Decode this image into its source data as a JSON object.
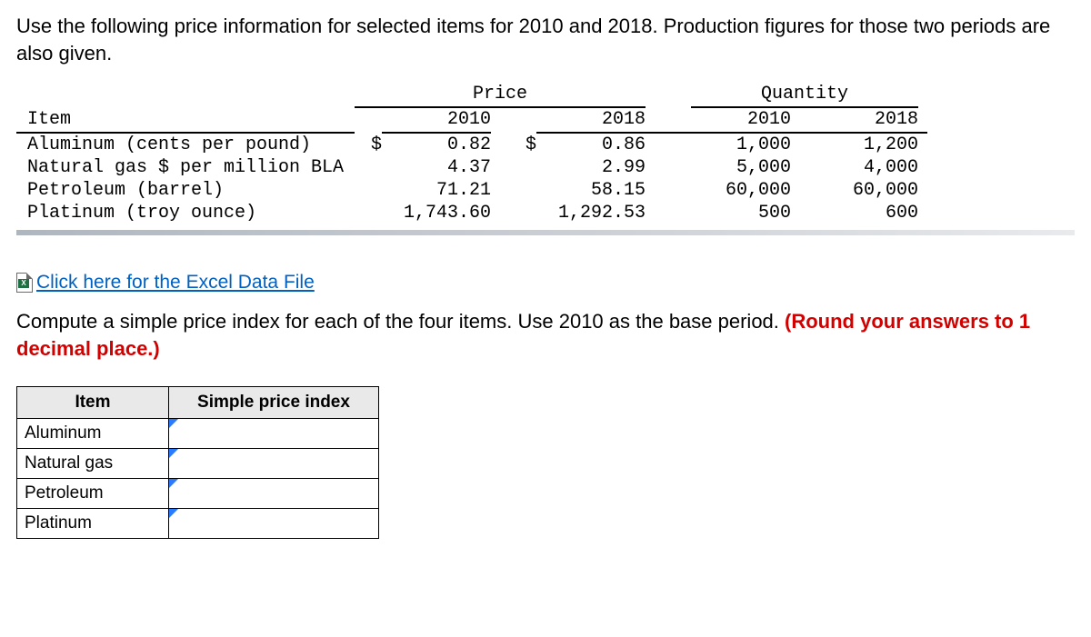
{
  "prompt": "Use the following price information for selected items for 2010 and 2018. Production figures for those two periods are also given.",
  "data_table": {
    "group_headers": {
      "price": "Price",
      "quantity": "Quantity"
    },
    "col_headers": {
      "item": "Item",
      "p2010": "2010",
      "p2018": "2018",
      "q2010": "2010",
      "q2018": "2018"
    },
    "currency_symbol": "$",
    "rows": [
      {
        "item": "Aluminum (cents per pound)",
        "dollar1": "$",
        "p2010": "0.82",
        "dollar2": "$",
        "p2018": "0.86",
        "q2010": "1,000",
        "q2018": "1,200"
      },
      {
        "item": "Natural gas $ per million BLA",
        "dollar1": "",
        "p2010": "4.37",
        "dollar2": "",
        "p2018": "2.99",
        "q2010": "5,000",
        "q2018": "4,000"
      },
      {
        "item": "Petroleum (barrel)",
        "dollar1": "",
        "p2010": "71.21",
        "dollar2": "",
        "p2018": "58.15",
        "q2010": "60,000",
        "q2018": "60,000"
      },
      {
        "item": "Platinum (troy ounce)",
        "dollar1": "",
        "p2010": "1,743.60",
        "dollar2": "",
        "p2018": "1,292.53",
        "q2010": "500",
        "q2018": "600"
      }
    ]
  },
  "excel_link": {
    "text": " Click here for the Excel Data File"
  },
  "instruction": {
    "lead": "Compute a simple price index for each of the four items. Use 2010 as the base period. ",
    "red": "(Round your answers to 1 decimal place.)"
  },
  "answer_table": {
    "headers": {
      "item": "Item",
      "spi": "Simple price index"
    },
    "rows": [
      {
        "label": "Aluminum"
      },
      {
        "label": "Natural gas"
      },
      {
        "label": "Petroleum"
      },
      {
        "label": "Platinum"
      }
    ]
  }
}
